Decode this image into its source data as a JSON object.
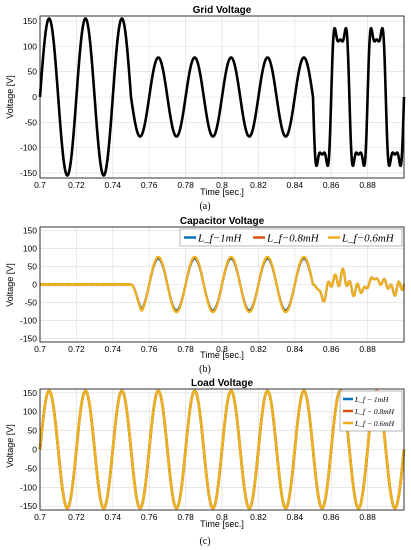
{
  "chart_data": [
    {
      "type": "line",
      "title": "Grid Voltage",
      "xlabel": "Time [sec.]",
      "ylabel": "Voltage [V]",
      "caption": "(a)",
      "xlim": [
        0.7,
        0.9
      ],
      "ylim": [
        -160,
        160
      ],
      "xticks": [
        "0.7",
        "0.72",
        "0.74",
        "0.76",
        "0.78",
        "0.8",
        "0.82",
        "0.84",
        "0.86",
        "0.88"
      ],
      "yticks": [
        "150",
        "100",
        "50",
        "0",
        "-50",
        "-100",
        "-150"
      ],
      "grid": true,
      "legend": null,
      "series": [
        {
          "color": "#000000",
          "description": "50 Hz sinusoid: amplitude 155 V until 0.75 s, 78 V sag from 0.75 s to 0.85 s, then distorted (flat-topped) waveform peaking near 152 V",
          "x": [
            0.7,
            0.705,
            0.715,
            0.725,
            0.735,
            0.745,
            0.755,
            0.765,
            0.775,
            0.785,
            0.795,
            0.805,
            0.815,
            0.825,
            0.835,
            0.845,
            0.855,
            0.865,
            0.875,
            0.885,
            0.895,
            0.9
          ],
          "values": [
            0,
            155,
            -155,
            155,
            -155,
            155,
            -78,
            78,
            -78,
            78,
            -78,
            78,
            -78,
            78,
            -78,
            78,
            -150,
            150,
            -150,
            150,
            -150,
            0
          ]
        }
      ]
    },
    {
      "type": "line",
      "title": "Capacitor Voltage",
      "xlabel": "Time [sec.]",
      "ylabel": "Voltage [V]",
      "caption": "(b)",
      "xlim": [
        0.7,
        0.9
      ],
      "ylim": [
        -160,
        160
      ],
      "xticks": [
        "0.7",
        "0.72",
        "0.74",
        "0.76",
        "0.78",
        "0.8",
        "0.82",
        "0.84",
        "0.86",
        "0.88"
      ],
      "yticks": [
        "150",
        "100",
        "50",
        "0",
        "-50",
        "-100",
        "-150"
      ],
      "grid": true,
      "legend": "top-right",
      "series": [
        {
          "name": "L_f−1mH",
          "color": "#0072BD",
          "x": [
            0.7,
            0.75,
            0.755,
            0.765,
            0.775,
            0.785,
            0.795,
            0.805,
            0.815,
            0.825,
            0.835,
            0.845,
            0.85,
            0.9
          ],
          "values": [
            0,
            0,
            -72,
            72,
            -72,
            72,
            -72,
            72,
            -72,
            72,
            -72,
            72,
            0,
            0
          ]
        },
        {
          "name": "L_f−0.8mH",
          "color": "#D95319",
          "x": [
            0.7,
            0.75,
            0.755,
            0.765,
            0.775,
            0.785,
            0.795,
            0.805,
            0.815,
            0.825,
            0.835,
            0.845,
            0.85,
            0.9
          ],
          "values": [
            0,
            0,
            -75,
            75,
            -75,
            75,
            -75,
            75,
            -75,
            75,
            -75,
            75,
            0,
            0
          ]
        },
        {
          "name": "L_f−0.6mH",
          "color": "#EDB120",
          "x": [
            0.7,
            0.75,
            0.755,
            0.765,
            0.775,
            0.785,
            0.795,
            0.805,
            0.815,
            0.825,
            0.835,
            0.845,
            0.85,
            0.9
          ],
          "values": [
            0,
            0,
            -77,
            77,
            -77,
            77,
            -77,
            77,
            -77,
            77,
            -77,
            77,
            0,
            0
          ]
        }
      ]
    },
    {
      "type": "line",
      "title": "Load Voltage",
      "xlabel": "Time [sec.]",
      "ylabel": "Voltage [V]",
      "caption": "(c)",
      "xlim": [
        0.7,
        0.9
      ],
      "ylim": [
        -160,
        160
      ],
      "xticks": [
        "0.7",
        "0.72",
        "0.74",
        "0.76",
        "0.78",
        "0.8",
        "0.82",
        "0.84",
        "0.86",
        "0.88"
      ],
      "yticks": [
        "150",
        "100",
        "50",
        "0",
        "-50",
        "-100",
        "-150"
      ],
      "grid": true,
      "legend": "top-right",
      "series": [
        {
          "name": "L_f − 1mH",
          "color": "#0072BD",
          "x": [
            0.7,
            0.705,
            0.715,
            0.725,
            0.735,
            0.745,
            0.755,
            0.765,
            0.775,
            0.785,
            0.795,
            0.805,
            0.815,
            0.825,
            0.835,
            0.845,
            0.855,
            0.865,
            0.875,
            0.885,
            0.895,
            0.9
          ],
          "values": [
            0,
            155,
            -155,
            155,
            -155,
            155,
            -155,
            155,
            -155,
            155,
            -155,
            155,
            -155,
            155,
            -155,
            155,
            -155,
            155,
            -155,
            155,
            -155,
            0
          ]
        },
        {
          "name": "L_f − 0.8mH",
          "color": "#D95319",
          "x": [
            0.7,
            0.705,
            0.715,
            0.725,
            0.735,
            0.745,
            0.755,
            0.765,
            0.775,
            0.785,
            0.795,
            0.805,
            0.815,
            0.825,
            0.835,
            0.845,
            0.855,
            0.865,
            0.875,
            0.885,
            0.895,
            0.9
          ],
          "values": [
            0,
            155,
            -155,
            155,
            -155,
            155,
            -155,
            155,
            -155,
            155,
            -155,
            155,
            -155,
            155,
            -155,
            155,
            -155,
            155,
            -155,
            155,
            -155,
            0
          ]
        },
        {
          "name": "L_f − 0.6mH",
          "color": "#EDB120",
          "x": [
            0.7,
            0.705,
            0.715,
            0.725,
            0.735,
            0.745,
            0.755,
            0.765,
            0.775,
            0.785,
            0.795,
            0.805,
            0.815,
            0.825,
            0.835,
            0.845,
            0.855,
            0.865,
            0.875,
            0.885,
            0.895,
            0.9
          ],
          "values": [
            0,
            155,
            -155,
            155,
            -155,
            155,
            -155,
            155,
            -155,
            155,
            -155,
            155,
            -155,
            155,
            -155,
            155,
            -155,
            155,
            -155,
            155,
            -155,
            0
          ]
        }
      ]
    }
  ]
}
